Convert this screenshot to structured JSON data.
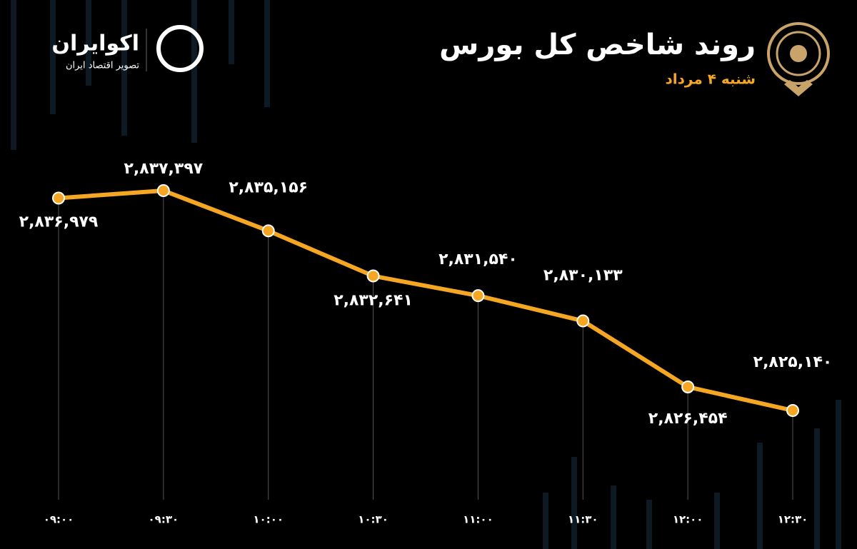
{
  "brand": {
    "name": "اکوایران",
    "tagline": "تصویر اقتصاد ایران"
  },
  "chart_data": {
    "type": "line",
    "title": "روند شاخص کل بورس",
    "subtitle": "شنبه ۴ مرداد",
    "categories": [
      "۰۹:۰۰",
      "۰۹:۳۰",
      "۱۰:۰۰",
      "۱۰:۳۰",
      "۱۱:۰۰",
      "۱۱:۳۰",
      "۱۲:۰۰",
      "۱۲:۳۰"
    ],
    "series": [
      {
        "color": "#f5a623",
        "values": [
          2836979,
          2837397,
          2835156,
          2832641,
          2831540,
          2830133,
          2826454,
          2825140
        ],
        "value_labels": [
          "۲,۸۳۶,۹۷۹",
          "۲,۸۳۷,۳۹۷",
          "۲,۸۳۵,۱۵۶",
          "۲,۸۳۲,۶۴۱",
          "۲,۸۳۱,۵۴۰",
          "۲,۸۳۰,۱۳۳",
          "۲,۸۲۶,۴۵۴",
          "۲,۸۲۵,۱۴۰"
        ]
      }
    ]
  }
}
